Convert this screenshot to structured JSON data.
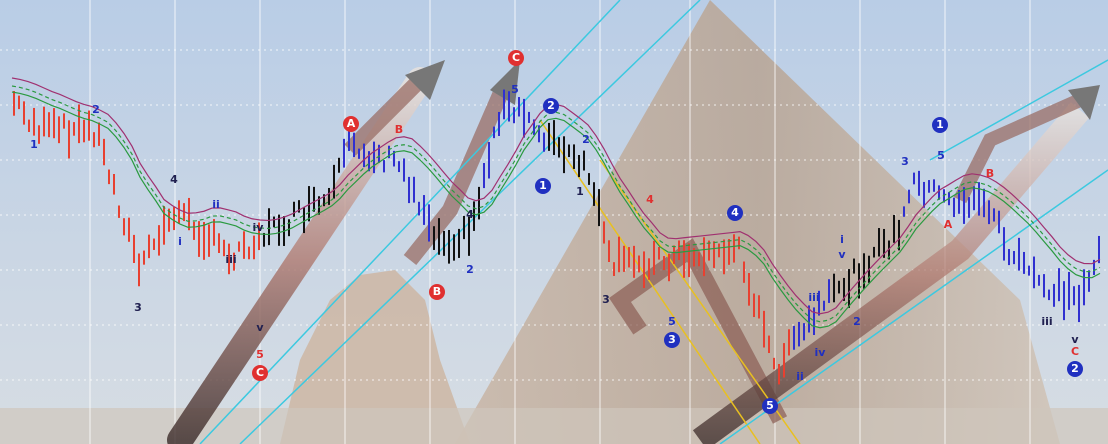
{
  "wave_labels": [
    "1",
    "2",
    "3",
    "4",
    "i",
    "ii",
    "iii",
    "iv",
    "v",
    "5",
    "C",
    "A",
    "B",
    "C",
    "5",
    "2",
    "1",
    "1",
    "2",
    "4",
    "2",
    "B",
    "4",
    "4",
    "3",
    "5",
    "3",
    "5",
    "ii",
    "iv",
    "iii",
    "i",
    "v",
    "2",
    "1",
    "3",
    "5",
    "A",
    "B",
    "iii",
    "v",
    "C",
    "2"
  ]
}
